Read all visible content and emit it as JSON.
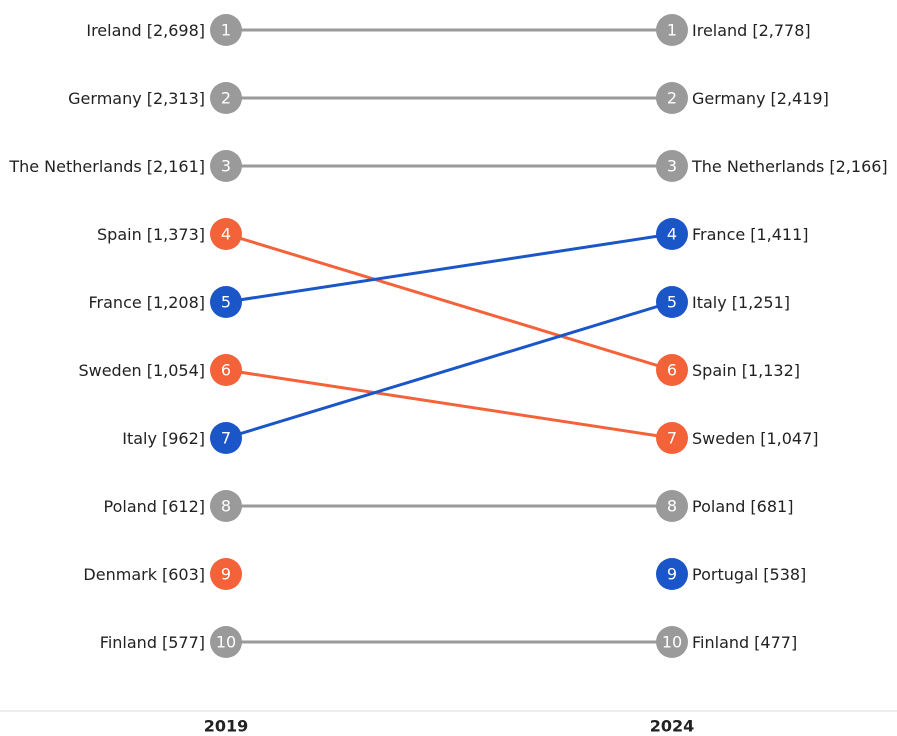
{
  "chart_data": {
    "type": "slope",
    "series": [
      {
        "name": "2019",
        "countries": [
          "Ireland",
          "Germany",
          "The Netherlands",
          "Spain",
          "France",
          "Sweden",
          "Italy",
          "Poland",
          "Denmark",
          "Finland"
        ],
        "ranks": [
          1,
          2,
          3,
          4,
          5,
          6,
          7,
          8,
          9,
          10
        ],
        "values": [
          2698,
          2313,
          2161,
          1373,
          1208,
          1054,
          962,
          612,
          603,
          577
        ],
        "value_labels": [
          "[2,698]",
          "[2,313]",
          "[2,161]",
          "[1,373]",
          "[1,208]",
          "[1,054]",
          "[962]",
          "[612]",
          "[603]",
          "[577]"
        ],
        "colors": [
          "#9a9a9a",
          "#9a9a9a",
          "#9a9a9a",
          "#f4623a",
          "#1a56c8",
          "#f4623a",
          "#1a56c8",
          "#9a9a9a",
          "#f4623a",
          "#9a9a9a"
        ]
      },
      {
        "name": "2024",
        "countries": [
          "Ireland",
          "Germany",
          "The Netherlands",
          "France",
          "Italy",
          "Spain",
          "Sweden",
          "Poland",
          "Portugal",
          "Finland"
        ],
        "ranks": [
          1,
          2,
          3,
          4,
          5,
          6,
          7,
          8,
          9,
          10
        ],
        "values": [
          2778,
          2419,
          2166,
          1411,
          1251,
          1132,
          1047,
          681,
          538,
          477
        ],
        "value_labels": [
          "[2,778]",
          "[2,419]",
          "[2,166]",
          "[1,411]",
          "[1,251]",
          "[1,132]",
          "[1,047]",
          "[681]",
          "[538]",
          "[477]"
        ],
        "colors": [
          "#9a9a9a",
          "#9a9a9a",
          "#9a9a9a",
          "#1a56c8",
          "#1a56c8",
          "#f4623a",
          "#f4623a",
          "#9a9a9a",
          "#1a56c8",
          "#9a9a9a"
        ]
      }
    ]
  }
}
